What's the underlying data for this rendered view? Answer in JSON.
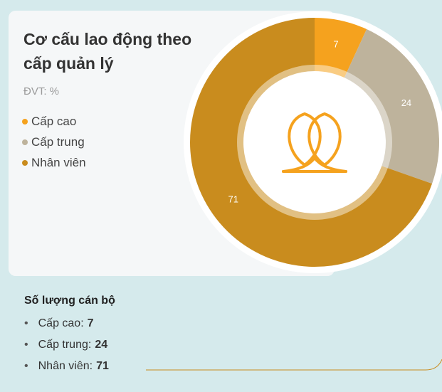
{
  "chart_data": {
    "type": "donut",
    "title": "Cơ cấu lao động theo cấp quản lý",
    "subtitle": "ĐVT: %",
    "categories": [
      "Cấp cao",
      "Cấp trung",
      "Nhân viên"
    ],
    "values": [
      7,
      24,
      71
    ],
    "colors": [
      "#f5a21e",
      "#beb39c",
      "#c98c1e"
    ]
  },
  "summary": {
    "title": "Số lượng cán bộ"
  }
}
